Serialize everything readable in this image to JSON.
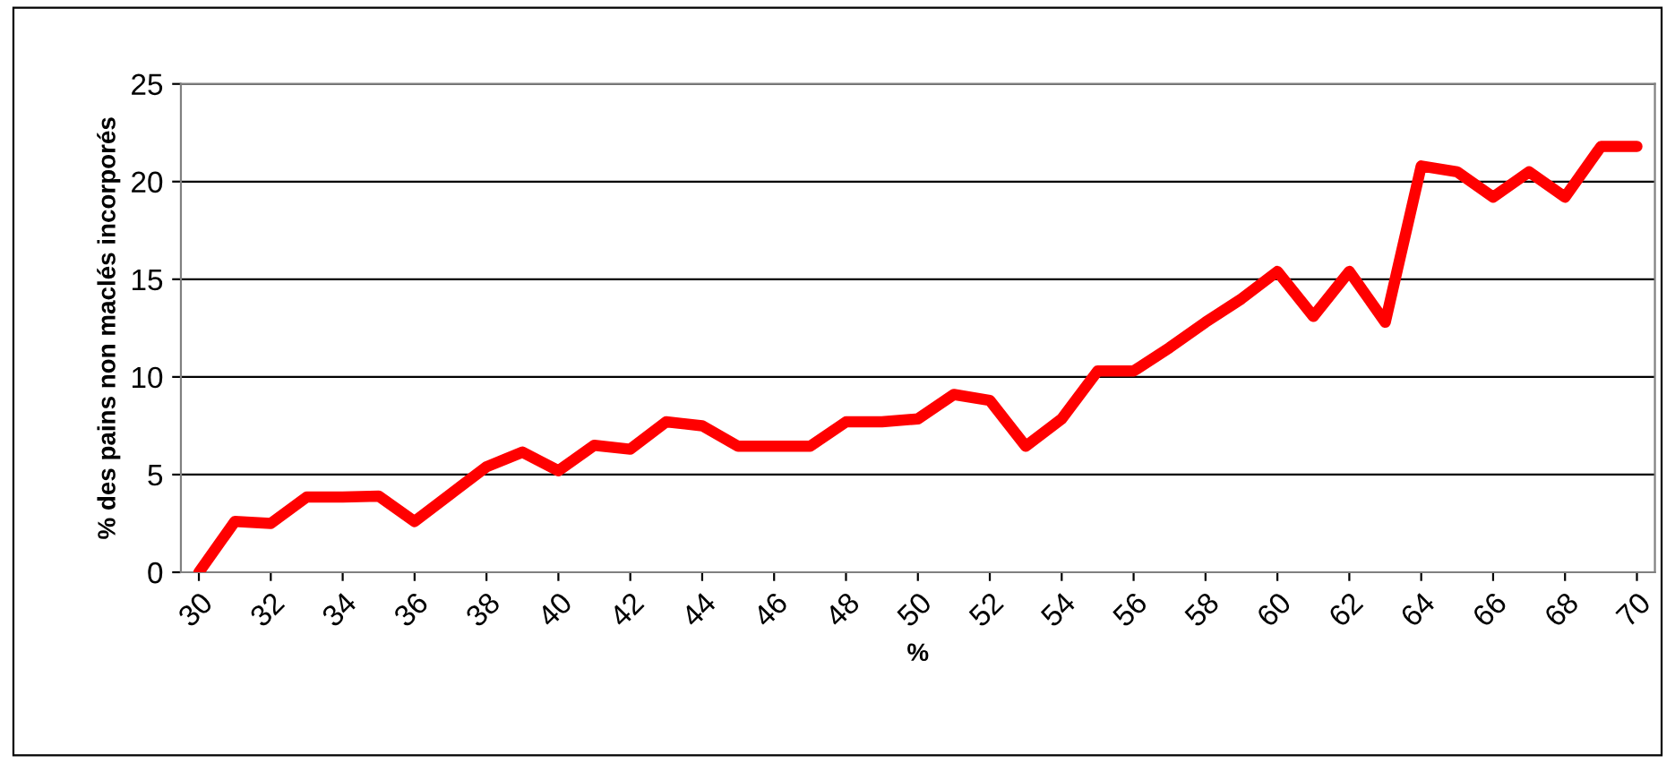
{
  "chart_data": {
    "type": "line",
    "xlabel": "%",
    "ylabel": "% des pains non maclés incorporés",
    "x": [
      30,
      31,
      32,
      33,
      34,
      35,
      36,
      37,
      38,
      39,
      40,
      41,
      42,
      43,
      44,
      45,
      46,
      47,
      48,
      49,
      50,
      51,
      52,
      53,
      54,
      55,
      56,
      57,
      58,
      59,
      60,
      61,
      62,
      63,
      64,
      65,
      66,
      67,
      68,
      69,
      70
    ],
    "series": [
      {
        "color": "#ff0000",
        "values": [
          0,
          2.6,
          2.5,
          3.85,
          3.85,
          3.9,
          2.6,
          4.0,
          5.4,
          6.15,
          5.2,
          6.5,
          6.3,
          7.7,
          7.5,
          6.45,
          6.45,
          6.45,
          7.7,
          7.7,
          7.85,
          9.1,
          8.8,
          6.45,
          7.85,
          10.3,
          10.3,
          11.5,
          12.8,
          14.0,
          15.4,
          13.1,
          15.4,
          12.8,
          20.8,
          20.5,
          19.2,
          20.5,
          19.2,
          21.8,
          21.8
        ]
      }
    ],
    "xlim": [
      29.5,
      70.5
    ],
    "xticks": [
      30,
      32,
      34,
      36,
      38,
      40,
      42,
      44,
      46,
      48,
      50,
      52,
      54,
      56,
      58,
      60,
      62,
      64,
      66,
      68,
      70
    ],
    "ylim": [
      0,
      25
    ],
    "yticks": [
      0,
      5,
      10,
      15,
      20,
      25
    ],
    "grid": "y",
    "marker": "none",
    "line_style": "solid"
  }
}
